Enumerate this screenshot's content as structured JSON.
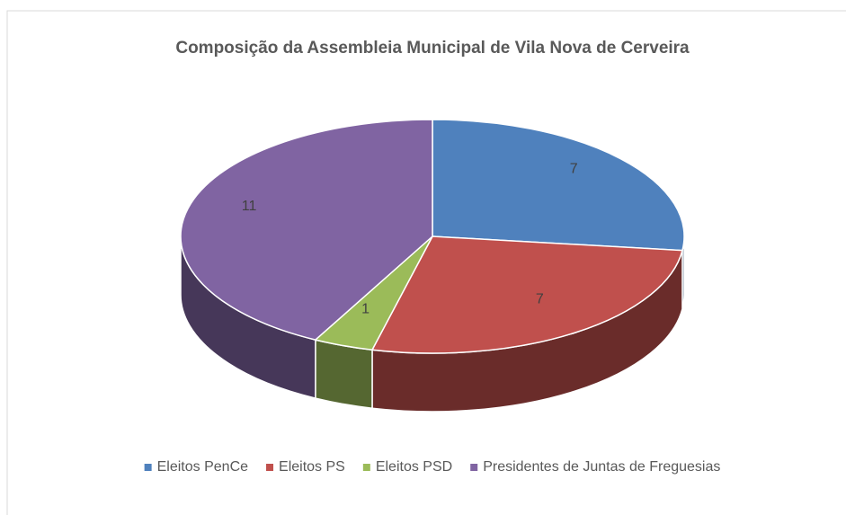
{
  "chart_data": {
    "type": "pie3d",
    "title": "Composição da Assembleia Municipal  de Vila Nova de Cerveira",
    "categories": [
      "Eleitos PenCe",
      "Eleitos PS",
      "Eleitos PSD",
      "Presidentes de Juntas de  Freguesias"
    ],
    "values": [
      7,
      7,
      1,
      11
    ],
    "colors": [
      "#4f81bd",
      "#c0504d",
      "#9bbb59",
      "#8064a2"
    ],
    "legend": "bottom"
  }
}
